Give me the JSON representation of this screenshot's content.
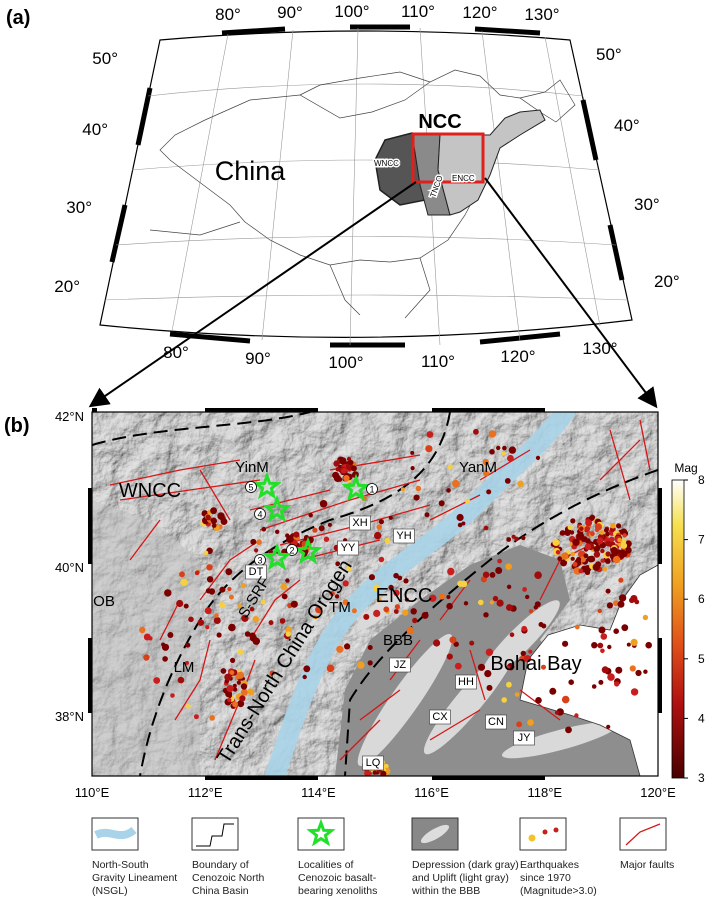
{
  "panel_a": {
    "label": "(a)",
    "top_lon_labels": [
      "80°",
      "90°",
      "100°",
      "110°",
      "120°",
      "130°"
    ],
    "bottom_lon_labels": [
      "80°",
      "90°",
      "100°",
      "110°",
      "120°",
      "130°"
    ],
    "left_lat_labels": [
      "50°",
      "40°",
      "30°",
      "20°"
    ],
    "right_lat_labels": [
      "50°",
      "40°",
      "30°",
      "20°"
    ],
    "region_label": "NCC",
    "country_label": "China",
    "subregion_labels": [
      "WNCC",
      "TNCO",
      "ENCC"
    ]
  },
  "panel_b": {
    "label": "(b)",
    "lat_labels": [
      "42°N",
      "40°N",
      "38°N"
    ],
    "lon_labels": [
      "110°E",
      "112°E",
      "114°E",
      "116°E",
      "118°E",
      "120°E"
    ],
    "place_labels": [
      "WNCC",
      "YinM",
      "YanM",
      "XH",
      "YY",
      "YH",
      "OB",
      "DT",
      "TM",
      "ENCC",
      "S-SRF",
      "Trans-North China Orogen",
      "BBB",
      "JZ",
      "HH",
      "LM",
      "Bohai Bay",
      "CX",
      "CN",
      "JY",
      "LQ"
    ],
    "site_numbers": [
      "1",
      "2",
      "3",
      "4",
      "5"
    ],
    "colorbar": {
      "title": "Mag",
      "range": [
        3,
        8
      ],
      "ticks": [
        3,
        4,
        5,
        6,
        7,
        8
      ]
    }
  },
  "legend": [
    {
      "lines": [
        "North-South",
        "Gravity Lineament",
        "(NSGL)"
      ]
    },
    {
      "lines": [
        "Boundary of",
        "Cenozoic North",
        "China Basin"
      ]
    },
    {
      "lines": [
        "Localities of",
        "Cenozoic basalt-",
        "bearing xenoliths"
      ]
    },
    {
      "lines": [
        "Depression (dark gray)",
        "and Uplift (light gray)",
        "within the BBB"
      ]
    },
    {
      "lines": [
        "Earthquakes",
        "since 1970",
        "(Magnitude>3.0)"
      ]
    },
    {
      "lines": [
        "Major faults"
      ]
    }
  ]
}
